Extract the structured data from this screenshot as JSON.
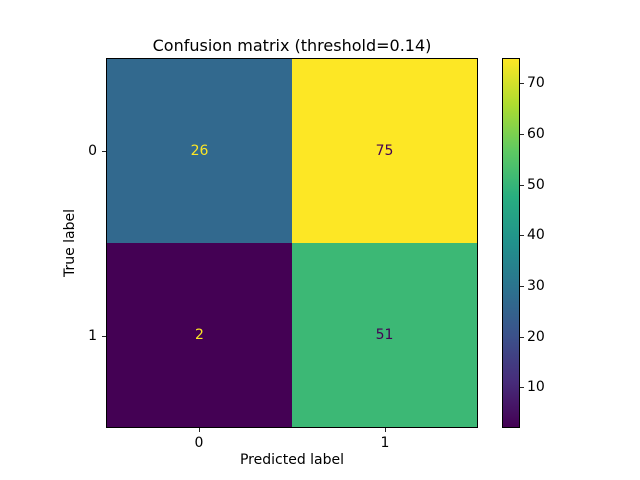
{
  "chart_data": {
    "type": "heatmap",
    "title": "Confusion matrix (threshold=0.14)",
    "xlabel": "Predicted label",
    "ylabel": "True label",
    "x_tick_labels": [
      "0",
      "1"
    ],
    "y_tick_labels": [
      "0",
      "1"
    ],
    "matrix": [
      [
        26,
        75
      ],
      [
        2,
        51
      ]
    ],
    "cell_colors": [
      [
        "#32698e",
        "#fde725"
      ],
      [
        "#440154",
        "#3cb875"
      ]
    ],
    "cell_text_colors": [
      [
        "#fde725",
        "#440154"
      ],
      [
        "#fde725",
        "#440154"
      ]
    ],
    "colormap": "viridis",
    "vmin": 2,
    "vmax": 75,
    "colorbar_ticks": [
      10,
      20,
      30,
      40,
      50,
      60,
      70
    ],
    "colorbar_position": "right",
    "grid": false,
    "legend": false,
    "viridis_stops": [
      "#440154",
      "#472d7b",
      "#3b528b",
      "#2c728e",
      "#21918c",
      "#28ae80",
      "#5ec962",
      "#addc30",
      "#fde725"
    ]
  }
}
